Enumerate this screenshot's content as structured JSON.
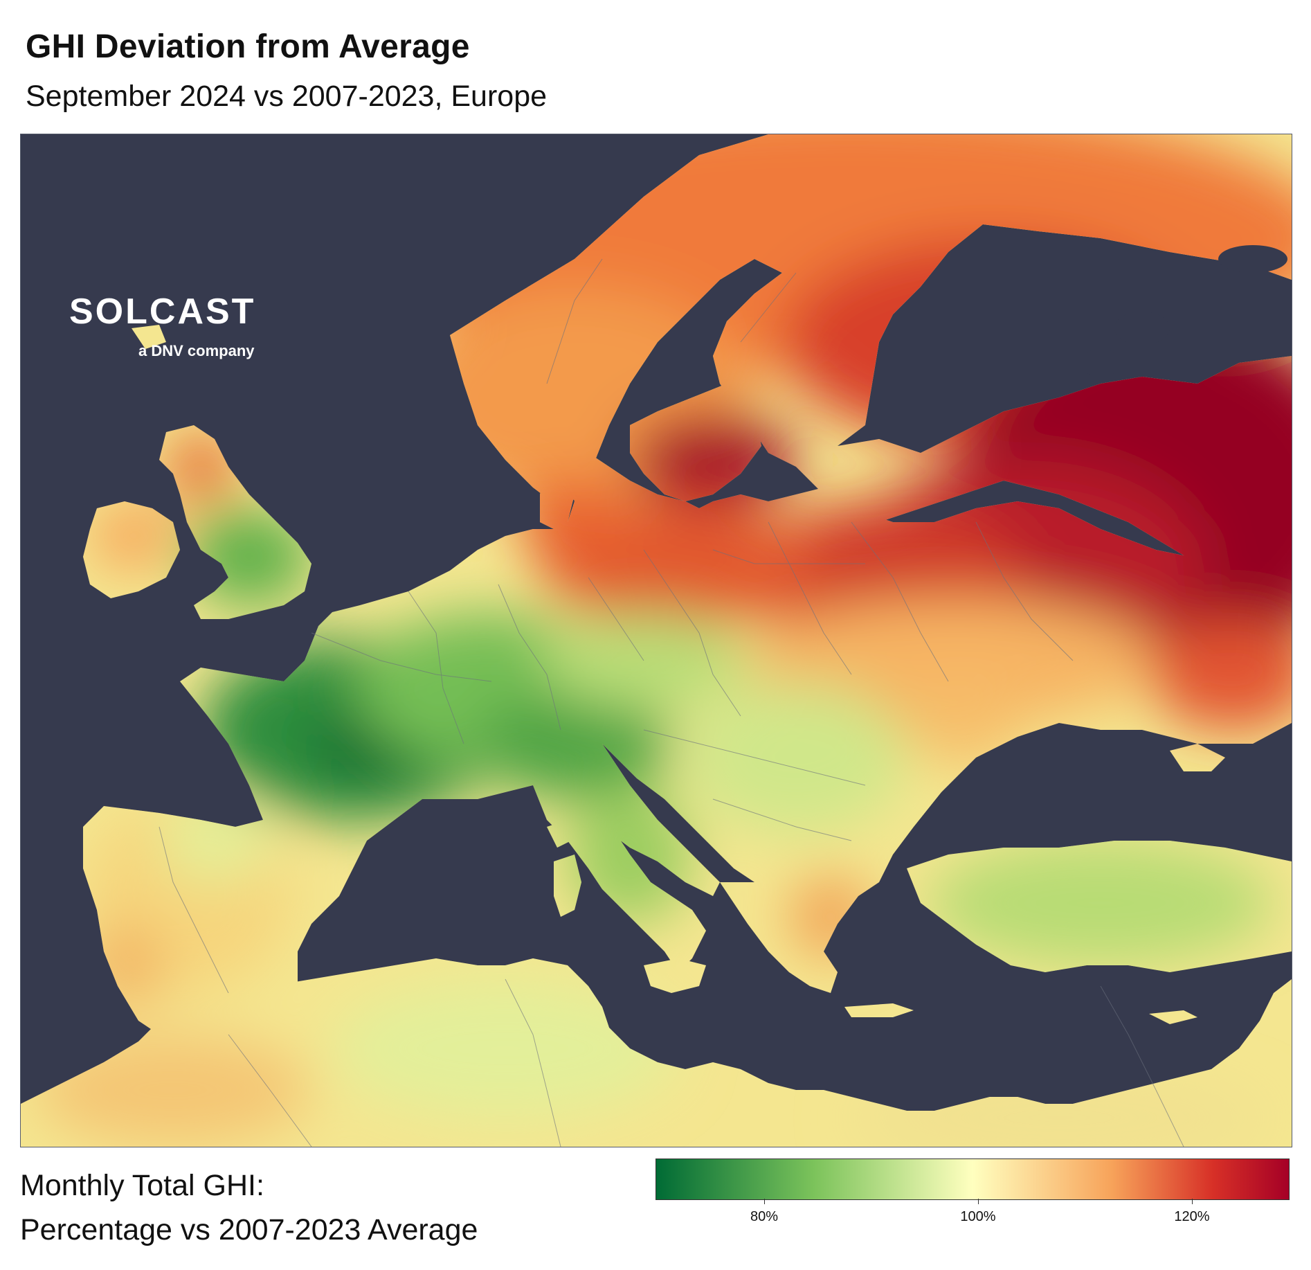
{
  "header": {
    "title": "GHI Deviation from Average",
    "subtitle": "September 2024 vs 2007-2023, Europe"
  },
  "logo": {
    "wordmark": "SOLCAST",
    "tagline": "a DNV company"
  },
  "legend": {
    "title_line1": "Monthly Total GHI:",
    "title_line2": "Percentage vs 2007-2023 Average",
    "colors": {
      "low": "#006b35",
      "mid": "#ffffbf",
      "high": "#a50026"
    },
    "ticks": [
      "80%",
      "100%",
      "120%"
    ]
  },
  "map": {
    "sea_color": "#363a4e"
  }
}
